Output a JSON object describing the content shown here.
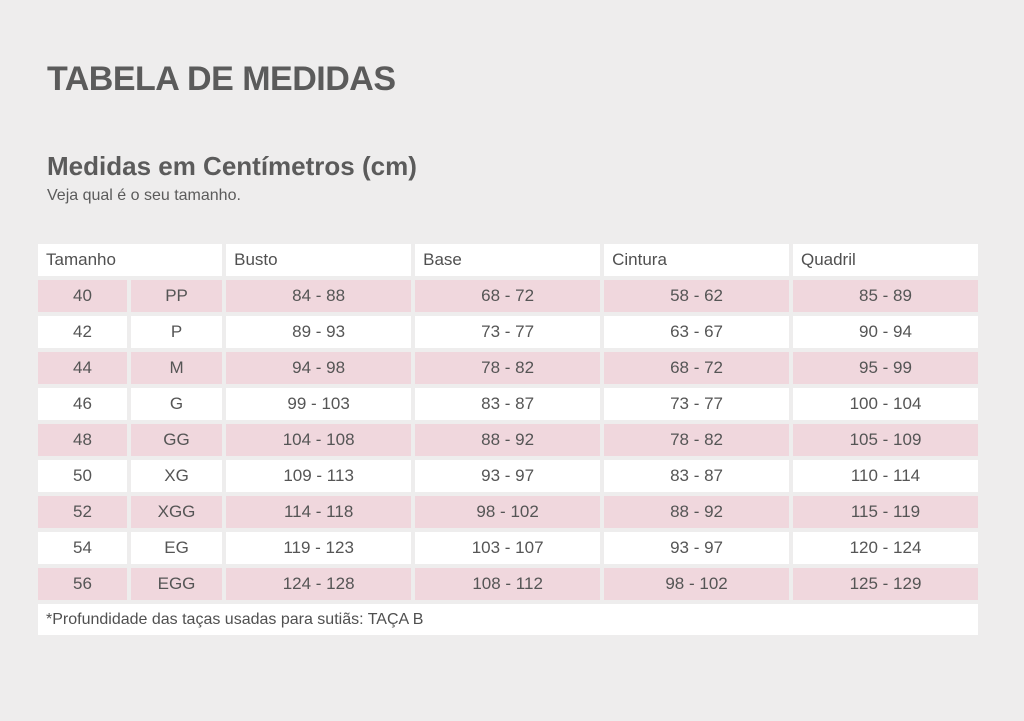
{
  "title": "TABELA DE MEDIDAS",
  "subtitle": "Medidas em Centímetros (cm)",
  "hint": "Veja qual é o seu tamanho.",
  "table": {
    "headers": [
      "Tamanho",
      "Busto",
      "Base",
      "Cintura",
      "Quadril"
    ],
    "rows": [
      {
        "num": "40",
        "size": "PP",
        "busto": "84 - 88",
        "base": "68 - 72",
        "cintura": "58 - 62",
        "quadril": "85 - 89"
      },
      {
        "num": "42",
        "size": "P",
        "busto": "89 - 93",
        "base": "73 - 77",
        "cintura": "63 - 67",
        "quadril": "90 - 94"
      },
      {
        "num": "44",
        "size": "M",
        "busto": "94 - 98",
        "base": "78 - 82",
        "cintura": "68 - 72",
        "quadril": "95 - 99"
      },
      {
        "num": "46",
        "size": "G",
        "busto": "99 - 103",
        "base": "83 - 87",
        "cintura": "73 - 77",
        "quadril": "100 - 104"
      },
      {
        "num": "48",
        "size": "GG",
        "busto": "104 - 108",
        "base": "88 - 92",
        "cintura": "78 - 82",
        "quadril": "105 - 109"
      },
      {
        "num": "50",
        "size": "XG",
        "busto": "109 - 113",
        "base": "93 - 97",
        "cintura": "83 - 87",
        "quadril": "110 - 114"
      },
      {
        "num": "52",
        "size": "XGG",
        "busto": "114 - 118",
        "base": "98 - 102",
        "cintura": "88 - 92",
        "quadril": "115 - 119"
      },
      {
        "num": "54",
        "size": "EG",
        "busto": "119 - 123",
        "base": "103 - 107",
        "cintura": "93 - 97",
        "quadril": "120 - 124"
      },
      {
        "num": "56",
        "size": "EGG",
        "busto": "124 - 128",
        "base": "108 - 112",
        "cintura": "98 - 102",
        "quadril": "125 - 129"
      }
    ],
    "footnote": "*Profundidade das taças usadas para sutiãs: TAÇA B"
  },
  "colors": {
    "background": "#eeeded",
    "row_pink": "#f0d7dd",
    "row_white": "#ffffff",
    "text": "#555555"
  }
}
